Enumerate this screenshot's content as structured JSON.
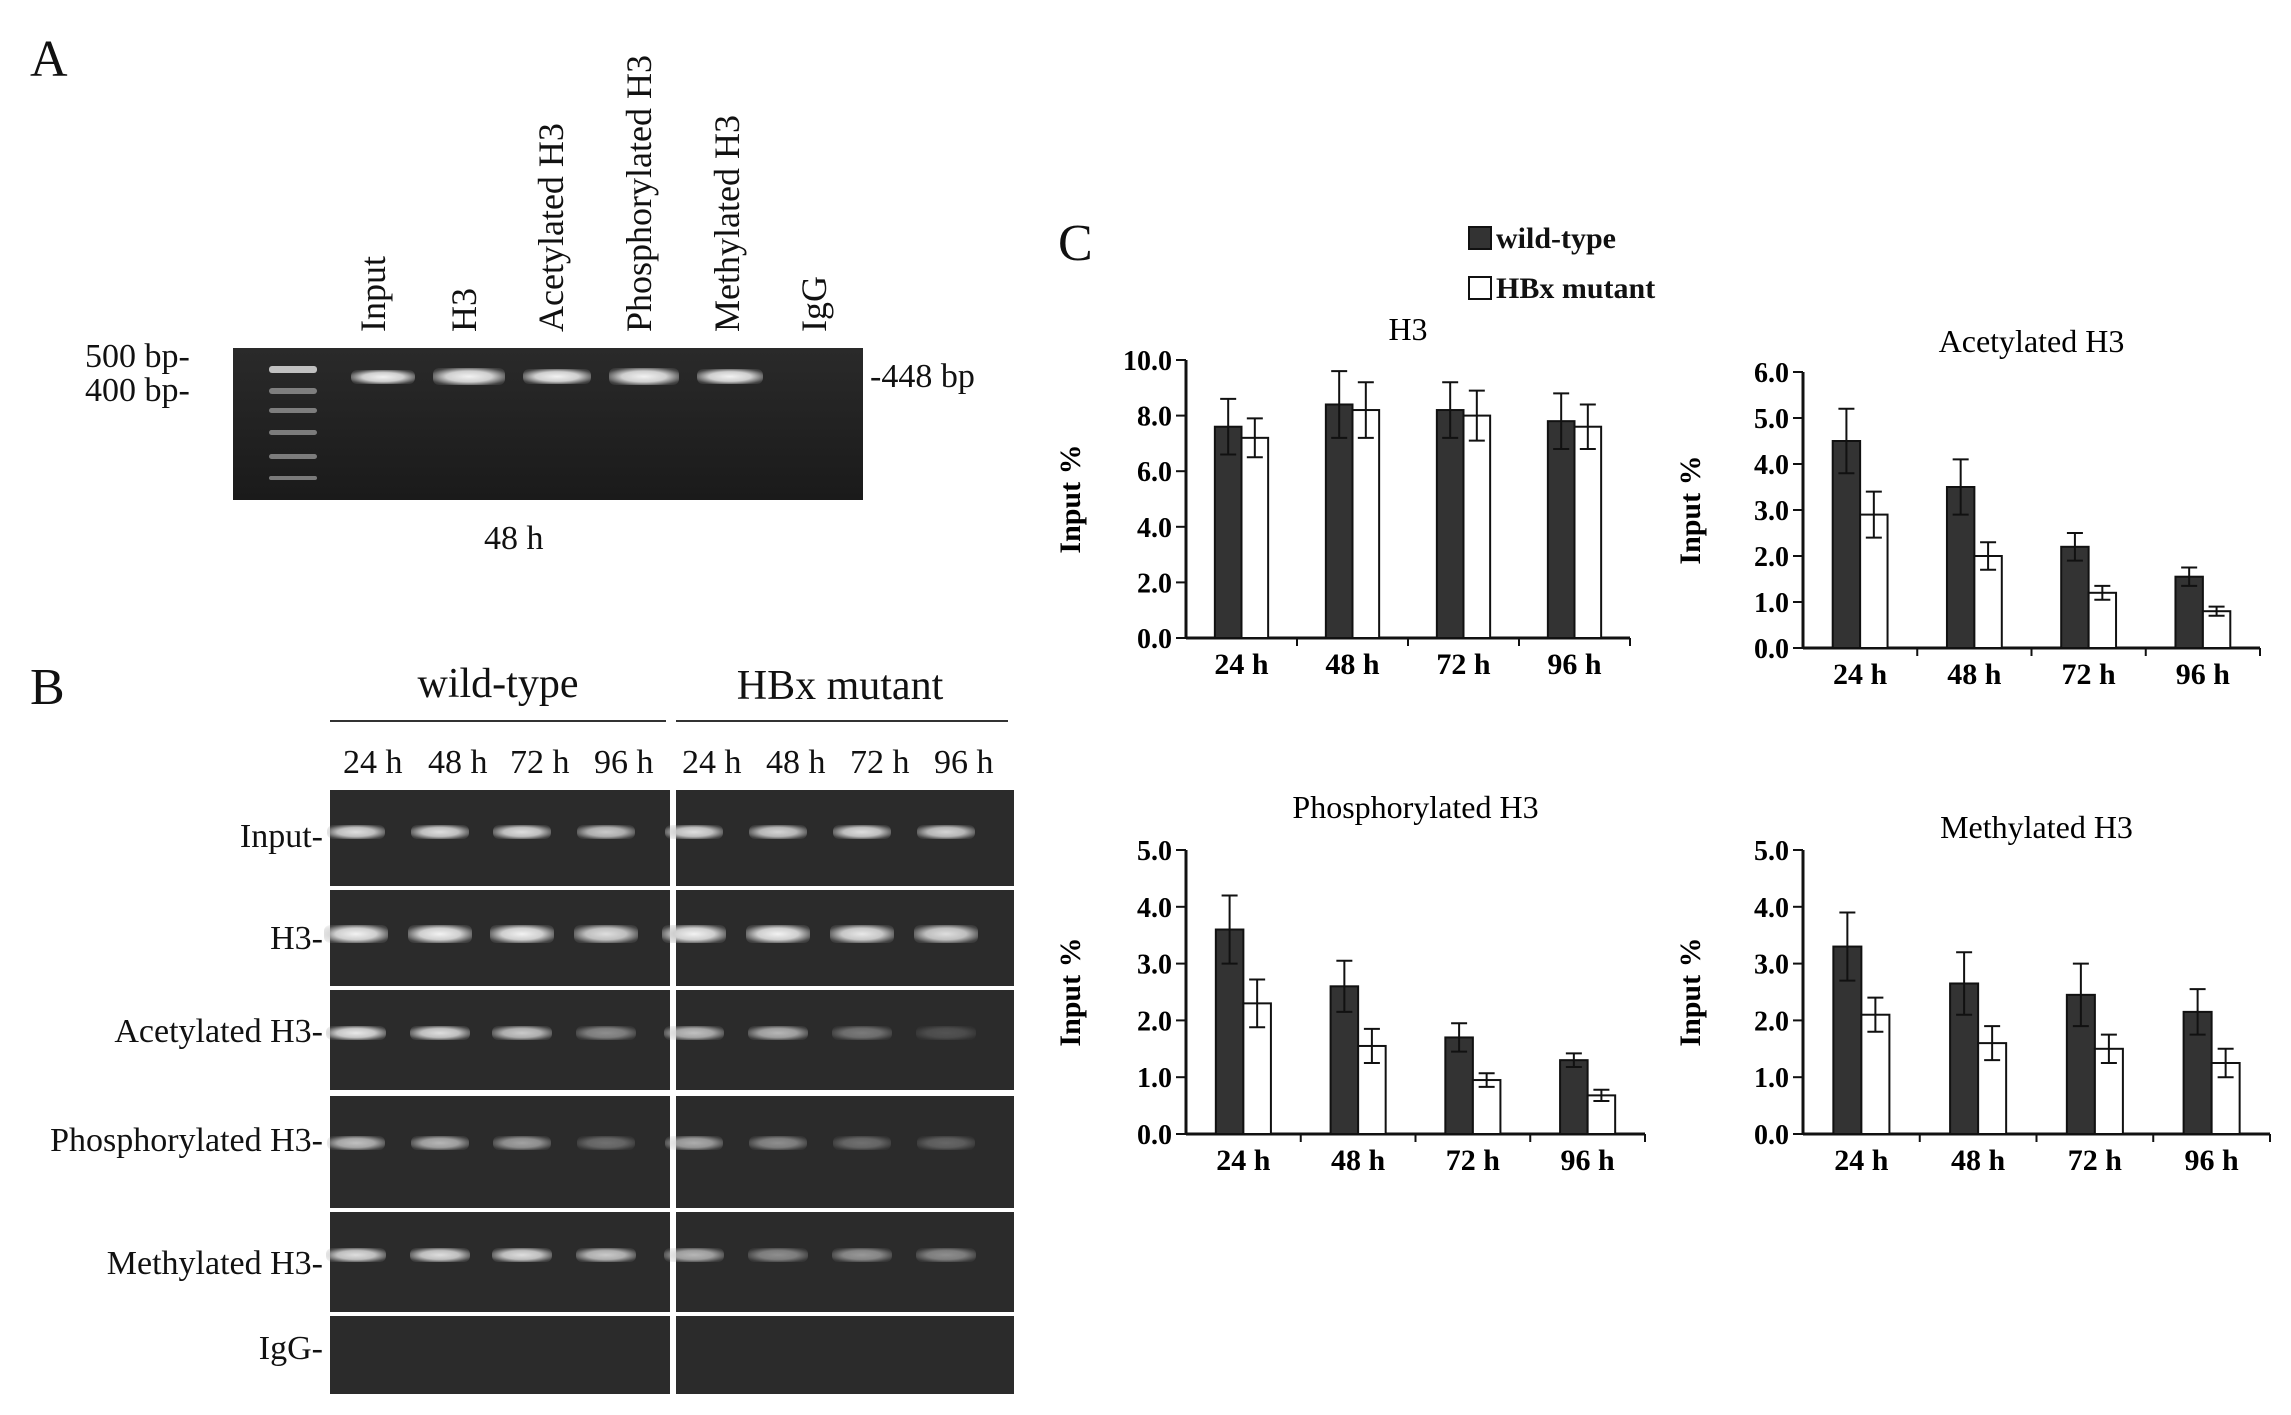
{
  "panelA": {
    "label": "A",
    "lanes": [
      "Input",
      "H3",
      "Acetylated H3",
      "Phosphorylated H3",
      "Methylated H3",
      "IgG"
    ],
    "marker_500": "500 bp-",
    "marker_400": "400 bp-",
    "product": "-448 bp",
    "time": "48 h"
  },
  "panelB": {
    "label": "B",
    "group_wt": "wild-type",
    "group_mut": "HBx mutant",
    "times": [
      "24 h",
      "48 h",
      "72 h",
      "96 h",
      "24 h",
      "48 h",
      "72 h",
      "96 h"
    ],
    "rows": [
      "Input-",
      "H3-",
      "Acetylated H3-",
      "Phosphorylated H3-",
      "Methylated H3-",
      "IgG-"
    ]
  },
  "panelC": {
    "label": "C",
    "legend": {
      "wt": "wild-type",
      "mut": "HBx mutant"
    }
  },
  "chart_data": [
    {
      "type": "bar",
      "title": "H3",
      "ylabel": "Input %",
      "categories": [
        "24 h",
        "48 h",
        "72 h",
        "96 h"
      ],
      "ylim": [
        0,
        10
      ],
      "yticks": [
        "0.0",
        "2.0",
        "4.0",
        "6.0",
        "8.0",
        "10.0"
      ],
      "series": [
        {
          "name": "wild-type",
          "values": [
            7.6,
            8.4,
            8.2,
            7.8
          ],
          "errors": [
            1.0,
            1.2,
            1.0,
            1.0
          ],
          "color": "#333333"
        },
        {
          "name": "HBx mutant",
          "values": [
            7.2,
            8.2,
            8.0,
            7.6
          ],
          "errors": [
            0.7,
            1.0,
            0.9,
            0.8
          ],
          "color": "#ffffff"
        }
      ]
    },
    {
      "type": "bar",
      "title": "Acetylated H3",
      "ylabel": "Input %",
      "categories": [
        "24 h",
        "48 h",
        "72 h",
        "96 h"
      ],
      "ylim": [
        0,
        6
      ],
      "yticks": [
        "0.0",
        "1.0",
        "2.0",
        "3.0",
        "4.0",
        "5.0",
        "6.0"
      ],
      "series": [
        {
          "name": "wild-type",
          "values": [
            4.5,
            3.5,
            2.2,
            1.55
          ],
          "errors": [
            0.7,
            0.6,
            0.3,
            0.2
          ],
          "color": "#333333"
        },
        {
          "name": "HBx mutant",
          "values": [
            2.9,
            2.0,
            1.2,
            0.8
          ],
          "errors": [
            0.5,
            0.3,
            0.15,
            0.1
          ],
          "color": "#ffffff"
        }
      ]
    },
    {
      "type": "bar",
      "title": "Phosphorylated H3",
      "ylabel": "Input %",
      "categories": [
        "24 h",
        "48 h",
        "72 h",
        "96 h"
      ],
      "ylim": [
        0,
        5
      ],
      "yticks": [
        "0.0",
        "1.0",
        "2.0",
        "3.0",
        "4.0",
        "5.0"
      ],
      "series": [
        {
          "name": "wild-type",
          "values": [
            3.6,
            2.6,
            1.7,
            1.3
          ],
          "errors": [
            0.6,
            0.45,
            0.25,
            0.12
          ],
          "color": "#333333"
        },
        {
          "name": "HBx mutant",
          "values": [
            2.3,
            1.55,
            0.95,
            0.68
          ],
          "errors": [
            0.42,
            0.3,
            0.12,
            0.1
          ],
          "color": "#ffffff"
        }
      ]
    },
    {
      "type": "bar",
      "title": "Methylated H3",
      "ylabel": "Input %",
      "categories": [
        "24 h",
        "48 h",
        "72 h",
        "96 h"
      ],
      "ylim": [
        0,
        5
      ],
      "yticks": [
        "0.0",
        "1.0",
        "2.0",
        "3.0",
        "4.0",
        "5.0"
      ],
      "series": [
        {
          "name": "wild-type",
          "values": [
            3.3,
            2.65,
            2.45,
            2.15
          ],
          "errors": [
            0.6,
            0.55,
            0.55,
            0.4
          ],
          "color": "#333333"
        },
        {
          "name": "HBx mutant",
          "values": [
            2.1,
            1.6,
            1.5,
            1.25
          ],
          "errors": [
            0.3,
            0.3,
            0.25,
            0.25
          ],
          "color": "#ffffff"
        }
      ]
    }
  ]
}
